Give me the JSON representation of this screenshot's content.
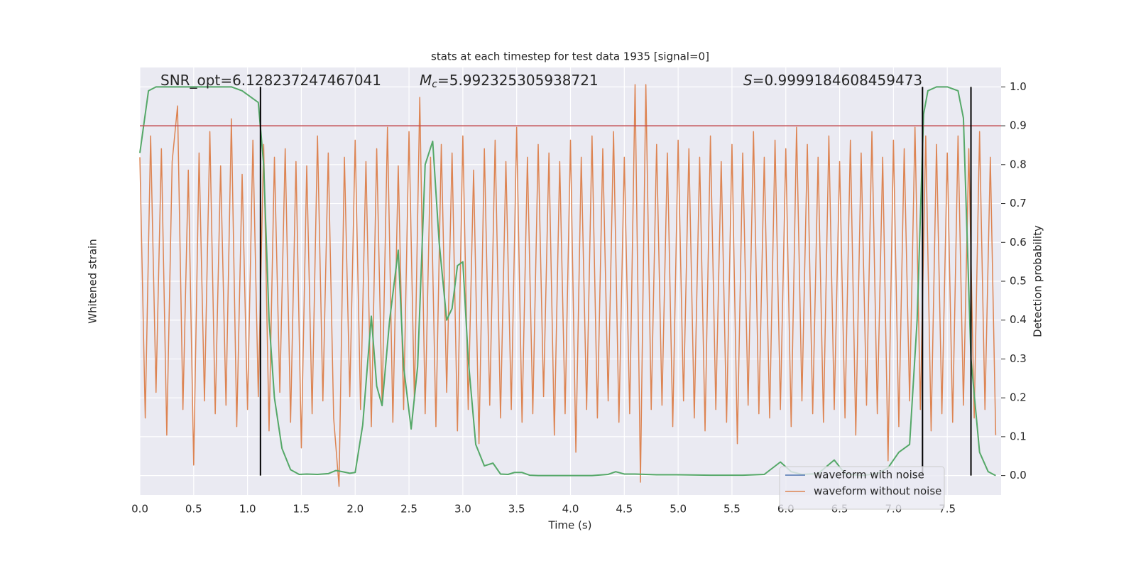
{
  "chart_data": {
    "type": "line",
    "title": "stats at each timestep for test data 1935 [signal=0]",
    "xlabel": "Time (s)",
    "ylabel": "Whitened strain",
    "y2label": "Detection probability",
    "annotations": [
      {
        "text": "SNR_opt=6.128237247467041"
      },
      {
        "symbol": "M",
        "subscript": "c",
        "text": "=5.992325305938721"
      },
      {
        "symbol": "S",
        "text": "=0.9999184608459473"
      }
    ],
    "xlim": [
      0,
      8.0
    ],
    "ylim": [
      -5,
      5
    ],
    "y2lim": [
      -0.05,
      1.05
    ],
    "xticks": [
      {
        "value": 0,
        "label": "0.0"
      },
      0.5,
      {
        "value": 1,
        "label": "1.0"
      },
      1.5,
      {
        "value": 2,
        "label": "2.0"
      },
      2.5,
      {
        "value": 3,
        "label": "3.0"
      },
      3.5,
      {
        "value": 4,
        "label": "4.0"
      },
      4.5,
      {
        "value": 5,
        "label": "5.0"
      },
      5.5,
      {
        "value": 6,
        "label": "6.0"
      },
      6.5,
      {
        "value": 7,
        "label": "7.0"
      },
      7.5
    ],
    "y2ticks": [
      {
        "value": 0,
        "label": "0.0"
      },
      0.1,
      0.2,
      0.3,
      0.4,
      0.5,
      0.6,
      0.7,
      0.8,
      0.9,
      {
        "value": 1,
        "label": "1.0"
      }
    ],
    "grid": true,
    "legend": "lower right",
    "threshold": 0.9,
    "threshold_color": "#c44e52",
    "vlines": [
      1.12,
      7.27,
      7.72
    ],
    "vline_color": "#000000",
    "series": [
      {
        "name": "waveform with noise",
        "color": "#4c72b0"
      },
      {
        "name": "waveform without noise",
        "color": "#dd8452",
        "x": [
          0,
          0.05,
          0.1,
          0.15,
          0.2,
          0.25,
          0.3,
          0.35,
          0.4,
          0.45,
          0.5,
          0.55,
          0.6,
          0.65,
          0.7,
          0.75,
          0.8,
          0.85,
          0.9,
          0.95,
          1.0,
          1.05,
          1.1,
          1.15,
          1.2,
          1.25,
          1.3,
          1.35,
          1.4,
          1.45,
          1.5,
          1.55,
          1.6,
          1.65,
          1.7,
          1.75,
          1.8,
          1.85,
          1.9,
          1.95,
          2.0,
          2.05,
          2.1,
          2.15,
          2.2,
          2.25,
          2.3,
          2.35,
          2.4,
          2.45,
          2.5,
          2.55,
          2.6,
          2.65,
          2.7,
          2.75,
          2.8,
          2.85,
          2.9,
          2.95,
          3.0,
          3.05,
          3.1,
          3.15,
          3.2,
          3.25,
          3.3,
          3.35,
          3.4,
          3.45,
          3.5,
          3.55,
          3.6,
          3.65,
          3.7,
          3.75,
          3.8,
          3.85,
          3.9,
          3.95,
          4.0,
          4.05,
          4.1,
          4.15,
          4.2,
          4.25,
          4.3,
          4.35,
          4.4,
          4.45,
          4.5,
          4.55,
          4.6,
          4.65,
          4.7,
          4.75,
          4.8,
          4.85,
          4.9,
          4.95,
          5.0,
          5.05,
          5.1,
          5.15,
          5.2,
          5.25,
          5.3,
          5.35,
          5.4,
          5.45,
          5.5,
          5.55,
          5.6,
          5.65,
          5.7,
          5.75,
          5.8,
          5.85,
          5.9,
          5.95,
          6.0,
          6.05,
          6.1,
          6.15,
          6.2,
          6.25,
          6.3,
          6.35,
          6.4,
          6.45,
          6.5,
          6.55,
          6.6,
          6.65,
          6.7,
          6.75,
          6.8,
          6.85,
          6.9,
          6.95,
          7.0,
          7.05,
          7.1,
          7.15,
          7.2,
          7.25,
          7.3,
          7.35,
          7.4,
          7.45,
          7.5,
          7.55,
          7.6,
          7.65,
          7.7,
          7.75,
          7.8,
          7.85,
          7.9,
          7.95
        ],
        "values": [
          2.9,
          -3.2,
          3.4,
          -2.6,
          3.1,
          -3.6,
          2.8,
          4.1,
          -3.0,
          2.6,
          -4.3,
          3.0,
          -2.8,
          3.5,
          -3.1,
          2.7,
          -2.9,
          3.8,
          -3.4,
          2.5,
          -3.0,
          3.3,
          -2.7,
          3.2,
          -3.5,
          2.9,
          -2.6,
          3.1,
          -3.3,
          2.8,
          -3.9,
          2.7,
          -3.1,
          3.4,
          -2.8,
          3.0,
          -3.2,
          -4.8,
          2.9,
          -2.7,
          3.3,
          -3.0,
          2.8,
          -3.4,
          3.1,
          -2.9,
          3.6,
          -3.3,
          2.7,
          -3.0,
          3.5,
          -2.8,
          4.3,
          -3.1,
          2.9,
          -3.4,
          3.2,
          -2.6,
          3.0,
          -3.5,
          3.4,
          -3.0,
          2.6,
          -3.8,
          3.1,
          -2.9,
          3.3,
          -3.2,
          2.8,
          -3.0,
          3.6,
          -3.3,
          2.9,
          -3.1,
          3.2,
          -2.7,
          3.0,
          -3.6,
          2.8,
          -3.1,
          3.3,
          -4.0,
          2.9,
          -3.0,
          3.4,
          -3.2,
          3.1,
          -2.8,
          3.5,
          -3.3,
          2.9,
          -3.1,
          4.6,
          -4.7,
          4.6,
          -3.0,
          3.2,
          -2.9,
          3.0,
          -3.4,
          3.3,
          -2.8,
          3.1,
          -3.2,
          2.9,
          -3.5,
          3.4,
          -3.0,
          2.8,
          -3.3,
          3.2,
          -3.8,
          3.0,
          -2.9,
          3.5,
          -3.1,
          2.9,
          -3.2,
          3.3,
          -3.0,
          3.1,
          -3.4,
          3.6,
          -2.8,
          3.2,
          -3.1,
          2.9,
          -3.3,
          3.4,
          -3.0,
          2.8,
          -3.2,
          3.3,
          -3.6,
          3.0,
          -2.9,
          3.5,
          -3.1,
          2.9,
          -4.2,
          3.3,
          -3.4,
          3.1,
          -2.8,
          3.6,
          -3.0,
          3.4,
          -3.5,
          3.2,
          -3.1,
          3.0,
          -3.3,
          3.4,
          -2.9,
          3.1,
          -3.2,
          3.5,
          -3.0,
          2.9,
          -3.6
        ]
      },
      {
        "name": "detection probability",
        "color": "#55a868",
        "axis": "y2",
        "legend": false,
        "x": [
          0,
          0.08,
          0.15,
          0.3,
          0.5,
          0.7,
          0.85,
          0.95,
          1.0,
          1.05,
          1.1,
          1.15,
          1.2,
          1.25,
          1.32,
          1.4,
          1.48,
          1.55,
          1.65,
          1.75,
          1.82,
          1.88,
          1.95,
          2.0,
          2.07,
          2.15,
          2.2,
          2.25,
          2.32,
          2.4,
          2.45,
          2.52,
          2.58,
          2.65,
          2.72,
          2.78,
          2.85,
          2.9,
          2.95,
          3.0,
          3.05,
          3.12,
          3.2,
          3.28,
          3.35,
          3.42,
          3.48,
          3.55,
          3.62,
          3.7,
          3.8,
          4.0,
          4.2,
          4.35,
          4.42,
          4.5,
          4.6,
          4.8,
          5.0,
          5.3,
          5.6,
          5.8,
          5.95,
          6.05,
          6.15,
          6.3,
          6.45,
          6.55,
          6.7,
          6.85,
          6.95,
          7.05,
          7.15,
          7.22,
          7.28,
          7.32,
          7.4,
          7.5,
          7.6,
          7.65,
          7.72,
          7.8,
          7.88,
          7.95
        ],
        "values": [
          0.83,
          0.99,
          1.0,
          1.0,
          1.0,
          1.0,
          1.0,
          0.99,
          0.98,
          0.97,
          0.96,
          0.8,
          0.4,
          0.2,
          0.07,
          0.015,
          0.003,
          0.004,
          0.003,
          0.005,
          0.013,
          0.01,
          0.006,
          0.008,
          0.13,
          0.41,
          0.23,
          0.18,
          0.4,
          0.58,
          0.28,
          0.12,
          0.28,
          0.8,
          0.86,
          0.6,
          0.4,
          0.43,
          0.54,
          0.55,
          0.3,
          0.08,
          0.025,
          0.032,
          0.004,
          0.003,
          0.008,
          0.008,
          0.001,
          0.0,
          0.0,
          0.0,
          0.0,
          0.003,
          0.01,
          0.004,
          0.004,
          0.002,
          0.002,
          0.001,
          0.001,
          0.003,
          0.035,
          0.01,
          0.003,
          0.005,
          0.04,
          0.005,
          0.0,
          0.005,
          0.02,
          0.06,
          0.08,
          0.4,
          0.93,
          0.99,
          1.0,
          1.0,
          0.99,
          0.92,
          0.3,
          0.06,
          0.01,
          0.0
        ]
      }
    ]
  }
}
